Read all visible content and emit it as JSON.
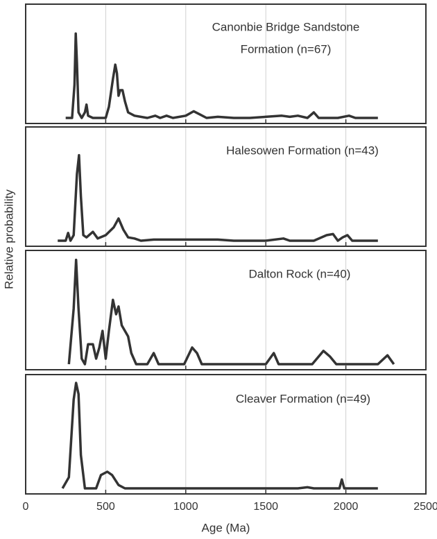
{
  "chart_data": [
    {
      "type": "line",
      "title": [
        "Canonbie Bridge Sandstone",
        "Formation (n=67)"
      ],
      "ylabel": "Relative probability",
      "xlim": [
        0,
        2500
      ],
      "xticks": [
        0,
        500,
        1000,
        1500,
        2000,
        2500
      ],
      "ylim": [
        0,
        1
      ],
      "grid": true,
      "color": "#333333",
      "x": [
        250,
        290,
        305,
        313,
        320,
        330,
        350,
        370,
        380,
        390,
        420,
        500,
        520,
        545,
        560,
        570,
        580,
        590,
        605,
        620,
        640,
        680,
        760,
        810,
        840,
        880,
        920,
        1000,
        1050,
        1090,
        1130,
        1200,
        1300,
        1400,
        1600,
        1650,
        1700,
        1760,
        1800,
        1830,
        1950,
        2020,
        2060,
        2200
      ],
      "values": [
        0,
        0,
        0.3,
        0.76,
        0.5,
        0.05,
        0,
        0.05,
        0.12,
        0.02,
        0,
        0,
        0.1,
        0.35,
        0.48,
        0.4,
        0.2,
        0.25,
        0.25,
        0.15,
        0.05,
        0.02,
        0,
        0.02,
        0,
        0.02,
        0,
        0.02,
        0.06,
        0.03,
        0,
        0.01,
        0,
        0,
        0.02,
        0.01,
        0.02,
        0,
        0.05,
        0,
        0,
        0.02,
        0,
        0
      ]
    },
    {
      "type": "line",
      "title": [
        "Halesowen Formation (n=43)"
      ],
      "xlim": [
        0,
        2500
      ],
      "xticks": [
        0,
        500,
        1000,
        1500,
        2000,
        2500
      ],
      "ylim": [
        0,
        1
      ],
      "grid": true,
      "color": "#333333",
      "x": [
        200,
        250,
        265,
        280,
        300,
        320,
        333,
        345,
        360,
        380,
        420,
        450,
        500,
        550,
        580,
        610,
        640,
        680,
        720,
        800,
        1000,
        1200,
        1300,
        1500,
        1610,
        1650,
        1800,
        1880,
        1920,
        1950,
        1980,
        2010,
        2040,
        2200
      ],
      "values": [
        0,
        0,
        0.07,
        0,
        0.05,
        0.6,
        0.77,
        0.4,
        0.05,
        0.03,
        0.08,
        0.02,
        0.05,
        0.12,
        0.2,
        0.1,
        0.03,
        0.02,
        0,
        0.01,
        0.01,
        0.01,
        0,
        0,
        0.02,
        0,
        0,
        0.05,
        0.06,
        0,
        0.03,
        0.05,
        0,
        0
      ]
    },
    {
      "type": "line",
      "title": [
        "Dalton Rock (n=40)"
      ],
      "xlim": [
        0,
        2500
      ],
      "xticks": [
        0,
        500,
        1000,
        1500,
        2000,
        2500
      ],
      "ylim": [
        0,
        1
      ],
      "grid": true,
      "color": "#333333",
      "x": [
        270,
        300,
        315,
        330,
        350,
        370,
        390,
        420,
        440,
        460,
        480,
        500,
        520,
        545,
        565,
        580,
        600,
        620,
        640,
        660,
        690,
        760,
        800,
        830,
        990,
        1040,
        1070,
        1100,
        1500,
        1550,
        1580,
        1790,
        1860,
        1900,
        1940,
        2200,
        2260,
        2300
      ],
      "values": [
        0,
        0.5,
        0.94,
        0.5,
        0.05,
        0,
        0.18,
        0.18,
        0.05,
        0.15,
        0.3,
        0.05,
        0.3,
        0.58,
        0.45,
        0.52,
        0.35,
        0.3,
        0.25,
        0.1,
        0,
        0,
        0.1,
        0,
        0,
        0.15,
        0.1,
        0,
        0,
        0.1,
        0,
        0,
        0.12,
        0.07,
        0,
        0,
        0.08,
        0
      ]
    },
    {
      "type": "line",
      "title": [
        "Cleaver Formation (n=49)"
      ],
      "xlabel": "Age (Ma)",
      "xlim": [
        0,
        2500
      ],
      "xticks": [
        0,
        500,
        1000,
        1500,
        2000,
        2500
      ],
      "ylim": [
        0,
        1
      ],
      "grid": true,
      "color": "#333333",
      "x": [
        230,
        270,
        300,
        315,
        330,
        345,
        370,
        440,
        470,
        510,
        540,
        580,
        620,
        1700,
        1760,
        1800,
        1960,
        1975,
        1990,
        2200
      ],
      "values": [
        0,
        0.1,
        0.8,
        0.95,
        0.85,
        0.3,
        0,
        0,
        0.12,
        0.15,
        0.12,
        0.03,
        0,
        0,
        0.01,
        0,
        0,
        0.08,
        0,
        0
      ]
    }
  ]
}
